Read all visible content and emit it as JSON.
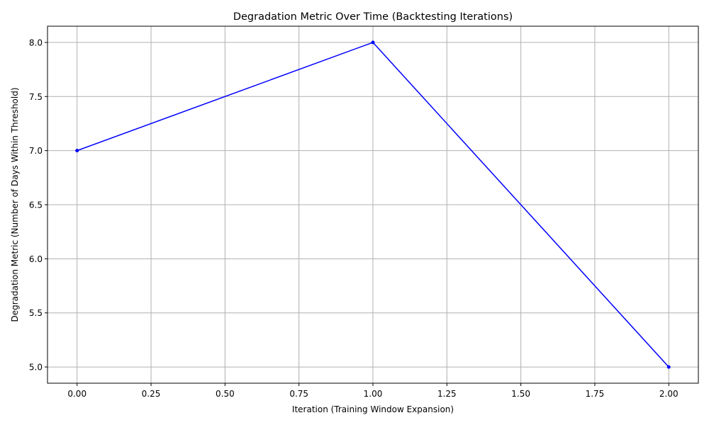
{
  "chart_data": {
    "type": "line",
    "title": "Degradation Metric Over Time (Backtesting Iterations)",
    "xlabel": "Iteration (Training Window Expansion)",
    "ylabel": "Degradation Metric (Number of Days Within Threshold)",
    "x": [
      0,
      1,
      2
    ],
    "series": [
      {
        "values": [
          7,
          8,
          5
        ],
        "color": "#0000ff",
        "marker": "circle"
      }
    ],
    "xlim": [
      -0.1,
      2.1
    ],
    "ylim": [
      4.85,
      8.15
    ],
    "xticks": [
      0.0,
      0.25,
      0.5,
      0.75,
      1.0,
      1.25,
      1.5,
      1.75,
      2.0
    ],
    "xtick_labels": [
      "0.00",
      "0.25",
      "0.50",
      "0.75",
      "1.00",
      "1.25",
      "1.50",
      "1.75",
      "2.00"
    ],
    "yticks": [
      5.0,
      5.5,
      6.0,
      6.5,
      7.0,
      7.5,
      8.0
    ],
    "ytick_labels": [
      "5.0",
      "5.5",
      "6.0",
      "6.5",
      "7.0",
      "7.5",
      "8.0"
    ],
    "grid": true,
    "legend": false,
    "colors": {
      "line": "#0000ff",
      "grid": "#b0b0b0",
      "axes": "#000000"
    }
  }
}
